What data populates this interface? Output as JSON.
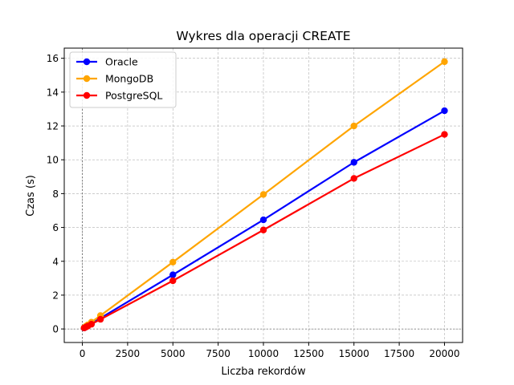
{
  "colors": {
    "oracle": "#0000ff",
    "mongodb": "#ffa500",
    "postgresql": "#ff0000",
    "grid": "#b0b0b0",
    "axis": "#000000"
  },
  "chart_data": {
    "type": "line",
    "title": "Wykres dla operacji CREATE",
    "xlabel": "Liczba rekordów",
    "ylabel": "Czas (s)",
    "xlim": [
      -1000,
      21000
    ],
    "ylim": [
      -0.8,
      16.6
    ],
    "xticks": [
      0,
      2500,
      5000,
      7500,
      10000,
      12500,
      15000,
      17500,
      20000
    ],
    "yticks": [
      0,
      2,
      4,
      6,
      8,
      10,
      12,
      14,
      16
    ],
    "grid": true,
    "grid_style": "dashed",
    "legend_position": "top-left",
    "x": [
      100,
      200,
      300,
      500,
      1000,
      5000,
      10000,
      15000,
      20000
    ],
    "series": [
      {
        "name": "Oracle",
        "color": "#0000ff",
        "values": [
          0.06,
          0.13,
          0.19,
          0.32,
          0.64,
          3.2,
          6.45,
          9.85,
          12.9
        ]
      },
      {
        "name": "MongoDB",
        "color": "#ffa500",
        "values": [
          0.08,
          0.16,
          0.24,
          0.4,
          0.79,
          3.95,
          7.95,
          12.0,
          15.8
        ]
      },
      {
        "name": "PostgreSQL",
        "color": "#ff0000",
        "values": [
          0.06,
          0.11,
          0.17,
          0.28,
          0.57,
          2.85,
          5.85,
          8.9,
          11.5
        ]
      }
    ]
  }
}
